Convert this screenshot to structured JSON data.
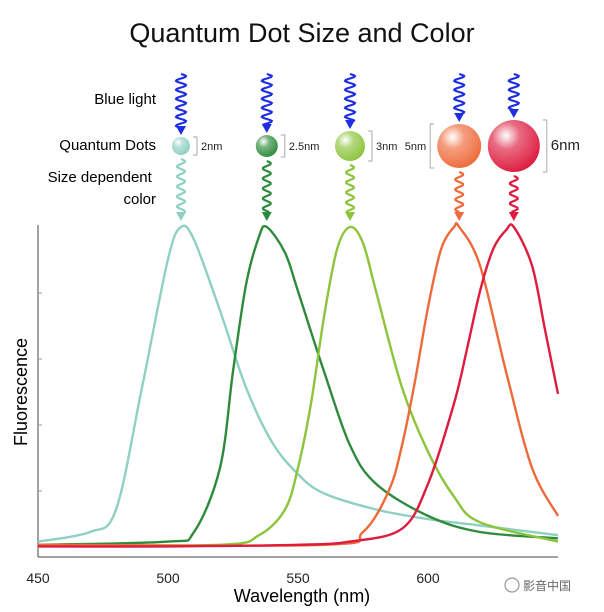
{
  "chart_data": {
    "type": "line",
    "title": "Quantum Dot Size and Color",
    "xlabel": "Wavelength (nm)",
    "ylabel": "Fluorescence",
    "xlim": [
      450,
      650
    ],
    "ylim": [
      0,
      1
    ],
    "xticks": [
      450,
      500,
      550,
      600
    ],
    "row_labels": {
      "light": "Blue light",
      "dots": "Quantum Dots",
      "emission": "Size dependent color"
    },
    "series": [
      {
        "name": "2nm",
        "color": "#8fd0c4",
        "peak": 505,
        "size_label": "2nm",
        "x": [
          450,
          470,
          480,
          490,
          500,
          505,
          510,
          520,
          530,
          540,
          550,
          560,
          580,
          600,
          620,
          650
        ],
        "y": [
          0.02,
          0.05,
          0.12,
          0.5,
          0.9,
          1.0,
          0.96,
          0.74,
          0.5,
          0.33,
          0.23,
          0.17,
          0.12,
          0.09,
          0.07,
          0.04
        ]
      },
      {
        "name": "2.5nm",
        "color": "#2e8b3c",
        "peak": 538,
        "size_label": "2.5nm",
        "x": [
          450,
          500,
          510,
          520,
          525,
          530,
          535,
          538,
          545,
          550,
          560,
          570,
          580,
          600,
          620,
          650
        ],
        "y": [
          0.01,
          0.02,
          0.05,
          0.25,
          0.55,
          0.82,
          0.97,
          1.0,
          0.92,
          0.8,
          0.55,
          0.32,
          0.2,
          0.1,
          0.05,
          0.03
        ]
      },
      {
        "name": "3nm",
        "color": "#8cc43c",
        "peak": 570,
        "size_label": "3nm",
        "x": [
          450,
          520,
          535,
          545,
          550,
          555,
          560,
          565,
          570,
          575,
          580,
          590,
          600,
          610,
          620,
          650
        ],
        "y": [
          0.01,
          0.01,
          0.04,
          0.12,
          0.25,
          0.45,
          0.72,
          0.93,
          1.0,
          0.95,
          0.8,
          0.5,
          0.3,
          0.16,
          0.08,
          0.02
        ]
      },
      {
        "name": "5nm",
        "color": "#ee6a3a",
        "peak": 612,
        "size_label": "5nm",
        "x": [
          450,
          560,
          575,
          585,
          590,
          595,
          600,
          605,
          610,
          612,
          620,
          630,
          640,
          650
        ],
        "y": [
          0.01,
          0.01,
          0.05,
          0.18,
          0.32,
          0.52,
          0.75,
          0.93,
          1.0,
          1.0,
          0.88,
          0.55,
          0.25,
          0.1
        ]
      },
      {
        "name": "6nm",
        "color": "#dd1c3e",
        "peak": 633,
        "size_label": "6nm",
        "x": [
          450,
          500,
          550,
          570,
          590,
          600,
          610,
          615,
          620,
          625,
          630,
          633,
          640,
          645,
          650
        ],
        "y": [
          0.005,
          0.005,
          0.01,
          0.02,
          0.06,
          0.2,
          0.45,
          0.62,
          0.8,
          0.93,
          0.99,
          1.0,
          0.88,
          0.68,
          0.48
        ]
      }
    ]
  },
  "watermark": "影音中国"
}
